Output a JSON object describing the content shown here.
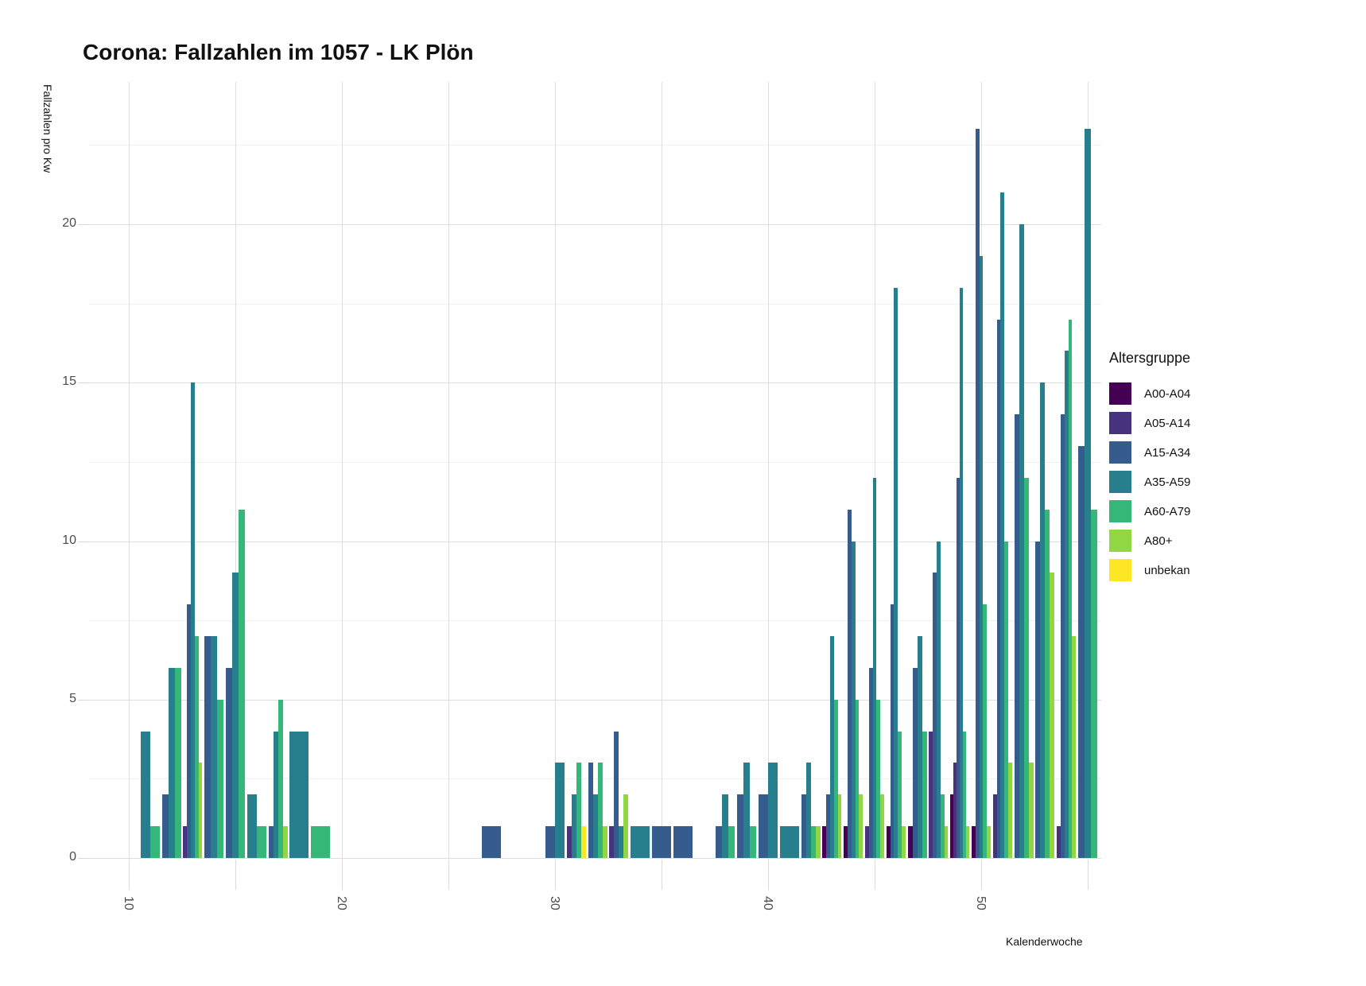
{
  "title": "Corona: Fallzahlen im 1057 - LK Plön",
  "axes": {
    "y_title": "Fallzahlen pro Kw",
    "x_title": "Kalenderwoche",
    "y_tick_labels": [
      0,
      5,
      10,
      15,
      20
    ],
    "y_minor_ticks": [
      2.5,
      7.5,
      12.5,
      17.5,
      22.5
    ],
    "x_labeled_ticks": [
      10,
      20,
      30,
      40,
      50
    ],
    "x_all_ticks": [
      10,
      15,
      20,
      25,
      30,
      35,
      40,
      45,
      50,
      55
    ]
  },
  "legend": {
    "title": "Altersgruppe",
    "items": [
      {
        "label": "A00-A04",
        "color": "#440154"
      },
      {
        "label": "A05-A14",
        "color": "#46327e"
      },
      {
        "label": "A15-A34",
        "color": "#365c8d"
      },
      {
        "label": "A35-A59",
        "color": "#277f8e"
      },
      {
        "label": "A60-A79",
        "color": "#35b779"
      },
      {
        "label": "A80+",
        "color": "#90d743"
      },
      {
        "label": "unbekan",
        "color": "#fde725"
      }
    ]
  },
  "chart_data": {
    "type": "bar",
    "title": "Corona: Fallzahlen im 1057 - LK Plön",
    "xlabel": "Kalenderwoche",
    "ylabel": "Fallzahlen pro Kw",
    "ylim": [
      0,
      24.5
    ],
    "x_week_range": [
      8.1,
      55.6
    ],
    "grid": true,
    "legend_position": "right",
    "groups": [
      "A00-A04",
      "A05-A14",
      "A15-A34",
      "A35-A59",
      "A60-A79",
      "A80+",
      "unbekan"
    ],
    "weeks": [
      {
        "week": 11,
        "bars": [
          [
            "A35-A59",
            4
          ],
          [
            "A60-A79",
            1
          ]
        ]
      },
      {
        "week": 12,
        "bars": [
          [
            "A15-A34",
            2
          ],
          [
            "A35-A59",
            6
          ],
          [
            "A60-A79",
            6
          ]
        ]
      },
      {
        "week": 13,
        "bars": [
          [
            "A05-A14",
            1
          ],
          [
            "A15-A34",
            8
          ],
          [
            "A35-A59",
            15
          ],
          [
            "A60-A79",
            7
          ],
          [
            "A80+",
            3
          ]
        ]
      },
      {
        "week": 14,
        "bars": [
          [
            "A15-A34",
            7
          ],
          [
            "A35-A59",
            7
          ],
          [
            "A60-A79",
            5
          ]
        ]
      },
      {
        "week": 15,
        "bars": [
          [
            "A15-A34",
            6
          ],
          [
            "A35-A59",
            9
          ],
          [
            "A60-A79",
            11
          ]
        ]
      },
      {
        "week": 16,
        "bars": [
          [
            "A35-A59",
            2
          ],
          [
            "A60-A79",
            1
          ]
        ]
      },
      {
        "week": 17,
        "bars": [
          [
            "A15-A34",
            1
          ],
          [
            "A35-A59",
            4
          ],
          [
            "A60-A79",
            5
          ],
          [
            "A80+",
            1
          ]
        ]
      },
      {
        "week": 18,
        "bars": [
          [
            "A35-A59",
            4
          ]
        ]
      },
      {
        "week": 19,
        "bars": [
          [
            "A60-A79",
            1
          ]
        ]
      },
      {
        "week": 27,
        "bars": [
          [
            "A15-A34",
            1
          ]
        ]
      },
      {
        "week": 30,
        "bars": [
          [
            "A15-A34",
            1
          ],
          [
            "A35-A59",
            3
          ]
        ]
      },
      {
        "week": 31,
        "bars": [
          [
            "A05-A14",
            1
          ],
          [
            "A35-A59",
            2
          ],
          [
            "A60-A79",
            3
          ],
          [
            "unbekan",
            1
          ]
        ]
      },
      {
        "week": 32,
        "bars": [
          [
            "A15-A34",
            3
          ],
          [
            "A35-A59",
            2
          ],
          [
            "A60-A79",
            3
          ],
          [
            "A80+",
            1
          ]
        ]
      },
      {
        "week": 33,
        "bars": [
          [
            "A05-A14",
            1
          ],
          [
            "A15-A34",
            4
          ],
          [
            "A35-A59",
            1
          ],
          [
            "A80+",
            2
          ]
        ]
      },
      {
        "week": 34,
        "bars": [
          [
            "A35-A59",
            1
          ]
        ]
      },
      {
        "week": 35,
        "bars": [
          [
            "A15-A34",
            1
          ]
        ]
      },
      {
        "week": 36,
        "bars": [
          [
            "A15-A34",
            1
          ]
        ]
      },
      {
        "week": 38,
        "bars": [
          [
            "A15-A34",
            1
          ],
          [
            "A35-A59",
            2
          ],
          [
            "A60-A79",
            1
          ]
        ]
      },
      {
        "week": 39,
        "bars": [
          [
            "A15-A34",
            2
          ],
          [
            "A35-A59",
            3
          ],
          [
            "A60-A79",
            1
          ]
        ]
      },
      {
        "week": 40,
        "bars": [
          [
            "A15-A34",
            2
          ],
          [
            "A35-A59",
            3
          ]
        ]
      },
      {
        "week": 41,
        "bars": [
          [
            "A35-A59",
            1
          ]
        ]
      },
      {
        "week": 42,
        "bars": [
          [
            "A15-A34",
            2
          ],
          [
            "A35-A59",
            3
          ],
          [
            "A60-A79",
            1
          ],
          [
            "A80+",
            1
          ]
        ]
      },
      {
        "week": 43,
        "bars": [
          [
            "A00-A04",
            1
          ],
          [
            "A15-A34",
            2
          ],
          [
            "A35-A59",
            7
          ],
          [
            "A60-A79",
            5
          ],
          [
            "A80+",
            2
          ]
        ]
      },
      {
        "week": 44,
        "bars": [
          [
            "A00-A04",
            1
          ],
          [
            "A15-A34",
            11
          ],
          [
            "A35-A59",
            10
          ],
          [
            "A60-A79",
            5
          ],
          [
            "A80+",
            2
          ]
        ]
      },
      {
        "week": 45,
        "bars": [
          [
            "A05-A14",
            1
          ],
          [
            "A15-A34",
            6
          ],
          [
            "A35-A59",
            12
          ],
          [
            "A60-A79",
            5
          ],
          [
            "A80+",
            2
          ]
        ]
      },
      {
        "week": 46,
        "bars": [
          [
            "A00-A04",
            1
          ],
          [
            "A15-A34",
            8
          ],
          [
            "A35-A59",
            18
          ],
          [
            "A60-A79",
            4
          ],
          [
            "A80+",
            1
          ]
        ]
      },
      {
        "week": 47,
        "bars": [
          [
            "A00-A04",
            1
          ],
          [
            "A15-A34",
            6
          ],
          [
            "A35-A59",
            7
          ],
          [
            "A60-A79",
            4
          ]
        ]
      },
      {
        "week": 48,
        "bars": [
          [
            "A05-A14",
            4
          ],
          [
            "A15-A34",
            9
          ],
          [
            "A35-A59",
            10
          ],
          [
            "A60-A79",
            2
          ],
          [
            "A80+",
            1
          ]
        ]
      },
      {
        "week": 49,
        "bars": [
          [
            "A00-A04",
            2
          ],
          [
            "A05-A14",
            3
          ],
          [
            "A15-A34",
            12
          ],
          [
            "A35-A59",
            18
          ],
          [
            "A60-A79",
            4
          ],
          [
            "A80+",
            1
          ]
        ]
      },
      {
        "week": 50,
        "bars": [
          [
            "A00-A04",
            1
          ],
          [
            "A15-A34",
            23
          ],
          [
            "A35-A59",
            19
          ],
          [
            "A60-A79",
            8
          ],
          [
            "A80+",
            1
          ]
        ]
      },
      {
        "week": 51,
        "bars": [
          [
            "A05-A14",
            2
          ],
          [
            "A15-A34",
            17
          ],
          [
            "A35-A59",
            21
          ],
          [
            "A60-A79",
            10
          ],
          [
            "A80+",
            3
          ]
        ]
      },
      {
        "week": 52,
        "bars": [
          [
            "A15-A34",
            14
          ],
          [
            "A35-A59",
            20
          ],
          [
            "A60-A79",
            12
          ],
          [
            "A80+",
            3
          ]
        ]
      },
      {
        "week": 53,
        "bars": [
          [
            "A15-A34",
            10
          ],
          [
            "A35-A59",
            15
          ],
          [
            "A60-A79",
            11
          ],
          [
            "A80+",
            9
          ]
        ]
      },
      {
        "week": 54,
        "bars": [
          [
            "A05-A14",
            1
          ],
          [
            "A15-A34",
            14
          ],
          [
            "A35-A59",
            16
          ],
          [
            "A60-A79",
            17
          ],
          [
            "A80+",
            7
          ]
        ]
      },
      {
        "week": 55,
        "bars": [
          [
            "A15-A34",
            13
          ],
          [
            "A35-A59",
            23
          ],
          [
            "A60-A79",
            11
          ]
        ]
      }
    ]
  }
}
